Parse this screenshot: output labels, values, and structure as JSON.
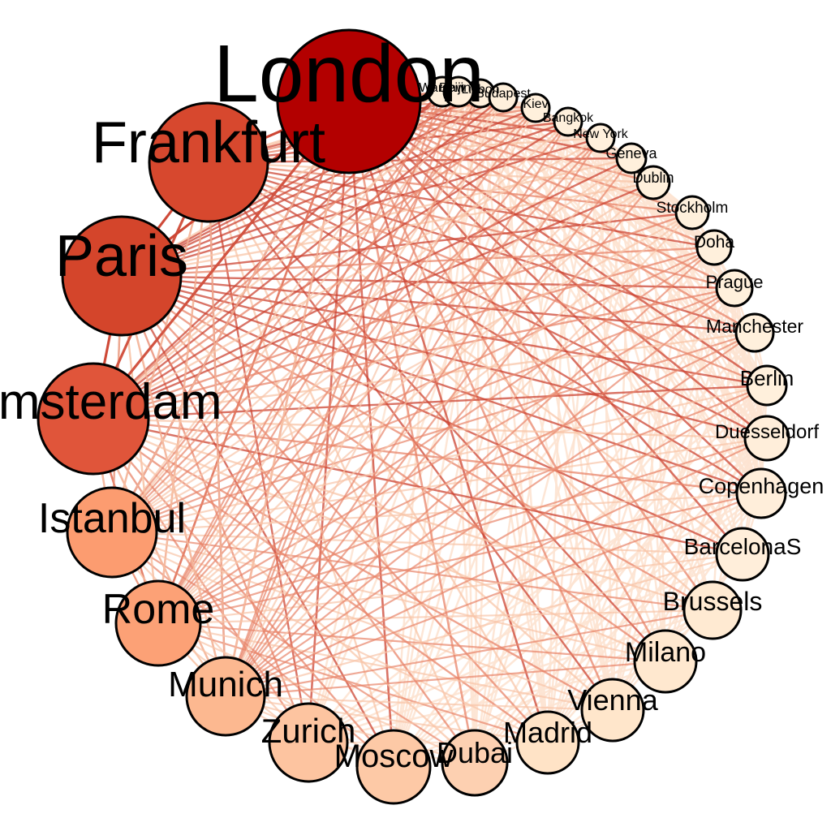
{
  "colors": {
    "background": "#ffffff",
    "node_outline": "#000000",
    "edge_strong": "#cc4433",
    "edge_medium": "#e8846a",
    "edge_light": "#f8c5a8",
    "edge_faint": "#fde3d2"
  },
  "nodes": [
    {
      "label": "London",
      "weight": 100,
      "color": "#b30000"
    },
    {
      "label": "Warsaw",
      "weight": 2,
      "color": "#fff0dc"
    },
    {
      "label": "Beijing",
      "weight": 2,
      "color": "#fff0dc"
    },
    {
      "label": "Lisbon",
      "weight": 2,
      "color": "#fff0dc"
    },
    {
      "label": "Budapest",
      "weight": 2,
      "color": "#fff0dc"
    },
    {
      "label": "Kiev",
      "weight": 2,
      "color": "#fff0dc"
    },
    {
      "label": "Bangkok",
      "weight": 3,
      "color": "#fff0dc"
    },
    {
      "label": "New York",
      "weight": 3,
      "color": "#fff0dc"
    },
    {
      "label": "Geneva",
      "weight": 3,
      "color": "#fff0dc"
    },
    {
      "label": "Dublin",
      "weight": 4,
      "color": "#fff0dc"
    },
    {
      "label": "Stockholm",
      "weight": 4,
      "color": "#fff0dc"
    },
    {
      "label": "Doha",
      "weight": 4,
      "color": "#fff0dc"
    },
    {
      "label": "Prague",
      "weight": 5,
      "color": "#fff0dc"
    },
    {
      "label": "Manchester",
      "weight": 5,
      "color": "#fff0dc"
    },
    {
      "label": "Berlin",
      "weight": 5,
      "color": "#fff0dc"
    },
    {
      "label": "Duesseldorf",
      "weight": 6,
      "color": "#ffeeda"
    },
    {
      "label": "Copenhagen",
      "weight": 7,
      "color": "#ffeeda"
    },
    {
      "label": "BarcelonaS",
      "weight": 7,
      "color": "#ffeeda"
    },
    {
      "label": "Brussels",
      "weight": 9,
      "color": "#ffead2"
    },
    {
      "label": "Milano",
      "weight": 9,
      "color": "#ffe8cf"
    },
    {
      "label": "Vienna",
      "weight": 10,
      "color": "#ffe6cb"
    },
    {
      "label": "Madrid",
      "weight": 11,
      "color": "#ffe3c6"
    },
    {
      "label": "Dubai",
      "weight": 14,
      "color": "#fdd0b1"
    },
    {
      "label": "Moscow",
      "weight": 16,
      "color": "#fdc9a6"
    },
    {
      "label": "Zurich",
      "weight": 18,
      "color": "#fdc4a0"
    },
    {
      "label": "Munich",
      "weight": 21,
      "color": "#fcb890"
    },
    {
      "label": "Rome",
      "weight": 27,
      "color": "#fca176"
    },
    {
      "label": "Istanbul",
      "weight": 29,
      "color": "#fc9c70"
    },
    {
      "label": "Amsterdam",
      "weight": 56,
      "color": "#e0553a"
    },
    {
      "label": "Paris",
      "weight": 64,
      "color": "#d4452b"
    },
    {
      "label": "Frankfurt",
      "weight": 61,
      "color": "#d7482e"
    }
  ]
}
